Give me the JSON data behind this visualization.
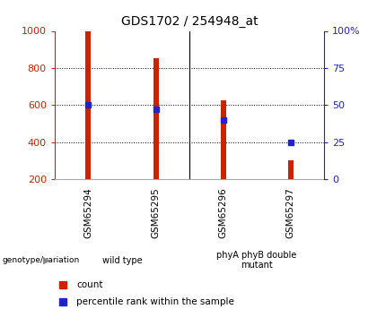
{
  "title": "GDS1702 / 254948_at",
  "samples": [
    "GSM65294",
    "GSM65295",
    "GSM65296",
    "GSM65297"
  ],
  "count_values": [
    1000,
    855,
    625,
    300
  ],
  "percentile_values": [
    50,
    47,
    40,
    25
  ],
  "bar_bottom": 200,
  "left_ylim": [
    200,
    1000
  ],
  "right_ylim": [
    0,
    100
  ],
  "left_yticks": [
    200,
    400,
    600,
    800,
    1000
  ],
  "right_yticks": [
    0,
    25,
    50,
    75,
    100
  ],
  "right_yticklabels": [
    "0",
    "25",
    "50",
    "75",
    "100%"
  ],
  "bar_color": "#cc2200",
  "percentile_color": "#2222cc",
  "bg_color": "#ffffff",
  "left_axis_color": "#cc2200",
  "right_axis_color": "#2222cc",
  "grid_color": "#000000",
  "groups": [
    {
      "label": "wild type",
      "samples": [
        0,
        1
      ],
      "color": "#bbeeaa"
    },
    {
      "label": "phyA phyB double\nmutant",
      "samples": [
        2,
        3
      ],
      "color": "#44ee44"
    }
  ],
  "group_label_text": "genotype/variation",
  "legend_count_label": "count",
  "legend_percentile_label": "percentile rank within the sample",
  "sample_cell_color": "#cccccc",
  "bar_width": 0.08
}
